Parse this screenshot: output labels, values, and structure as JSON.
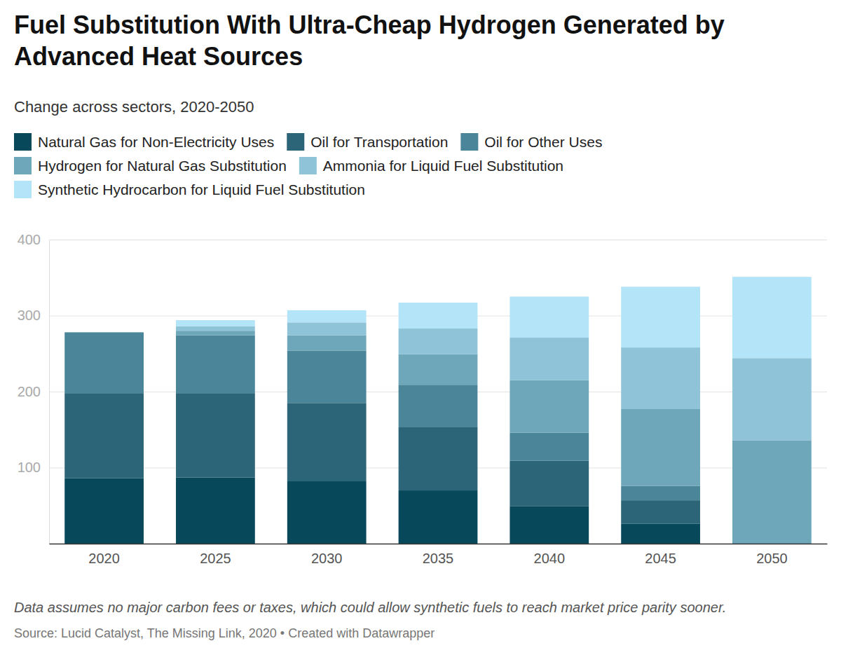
{
  "chart_data": {
    "type": "bar",
    "stacked": true,
    "grid": true,
    "legend": "top",
    "title": "Fuel Substitution With Ultra-Cheap Hydrogen Generated by Advanced Heat Sources",
    "subtitle": "Change across sectors, 2020-2050",
    "note": "Data assumes no major carbon fees or taxes, which could allow synthetic fuels to reach market price parity sooner.",
    "source": "Source: Lucid Catalyst, The Missing Link, 2020 • Created with Datawrapper",
    "categories": [
      "2020",
      "2025",
      "2030",
      "2035",
      "2040",
      "2045",
      "2050"
    ],
    "ylim": [
      0,
      400
    ],
    "yticks": [
      100,
      200,
      300,
      400
    ],
    "series": [
      {
        "name": "Natural Gas for Non-Electricity Uses",
        "color": "#07485b",
        "values": [
          86,
          87,
          82,
          70,
          49,
          26,
          0
        ]
      },
      {
        "name": "Oil for Transportation",
        "color": "#2c6577",
        "values": [
          112,
          111,
          103,
          83,
          60,
          31,
          0
        ]
      },
      {
        "name": "Oil for Other Uses",
        "color": "#4b8599",
        "values": [
          80,
          76,
          69,
          56,
          37,
          19,
          0
        ]
      },
      {
        "name": "Hydrogen for Natural Gas Substitution",
        "color": "#6ea6ba",
        "values": [
          0,
          6,
          20,
          40,
          69,
          101,
          136
        ]
      },
      {
        "name": "Ammonia for Liquid Fuel Substitution",
        "color": "#8fc3d8",
        "values": [
          0,
          6,
          17,
          34,
          56,
          81,
          108
        ]
      },
      {
        "name": "Synthetic Hydrocarbon for Liquid Fuel Substitution",
        "color": "#b3e4f7",
        "values": [
          0,
          8,
          16,
          34,
          54,
          80,
          107
        ]
      }
    ]
  }
}
